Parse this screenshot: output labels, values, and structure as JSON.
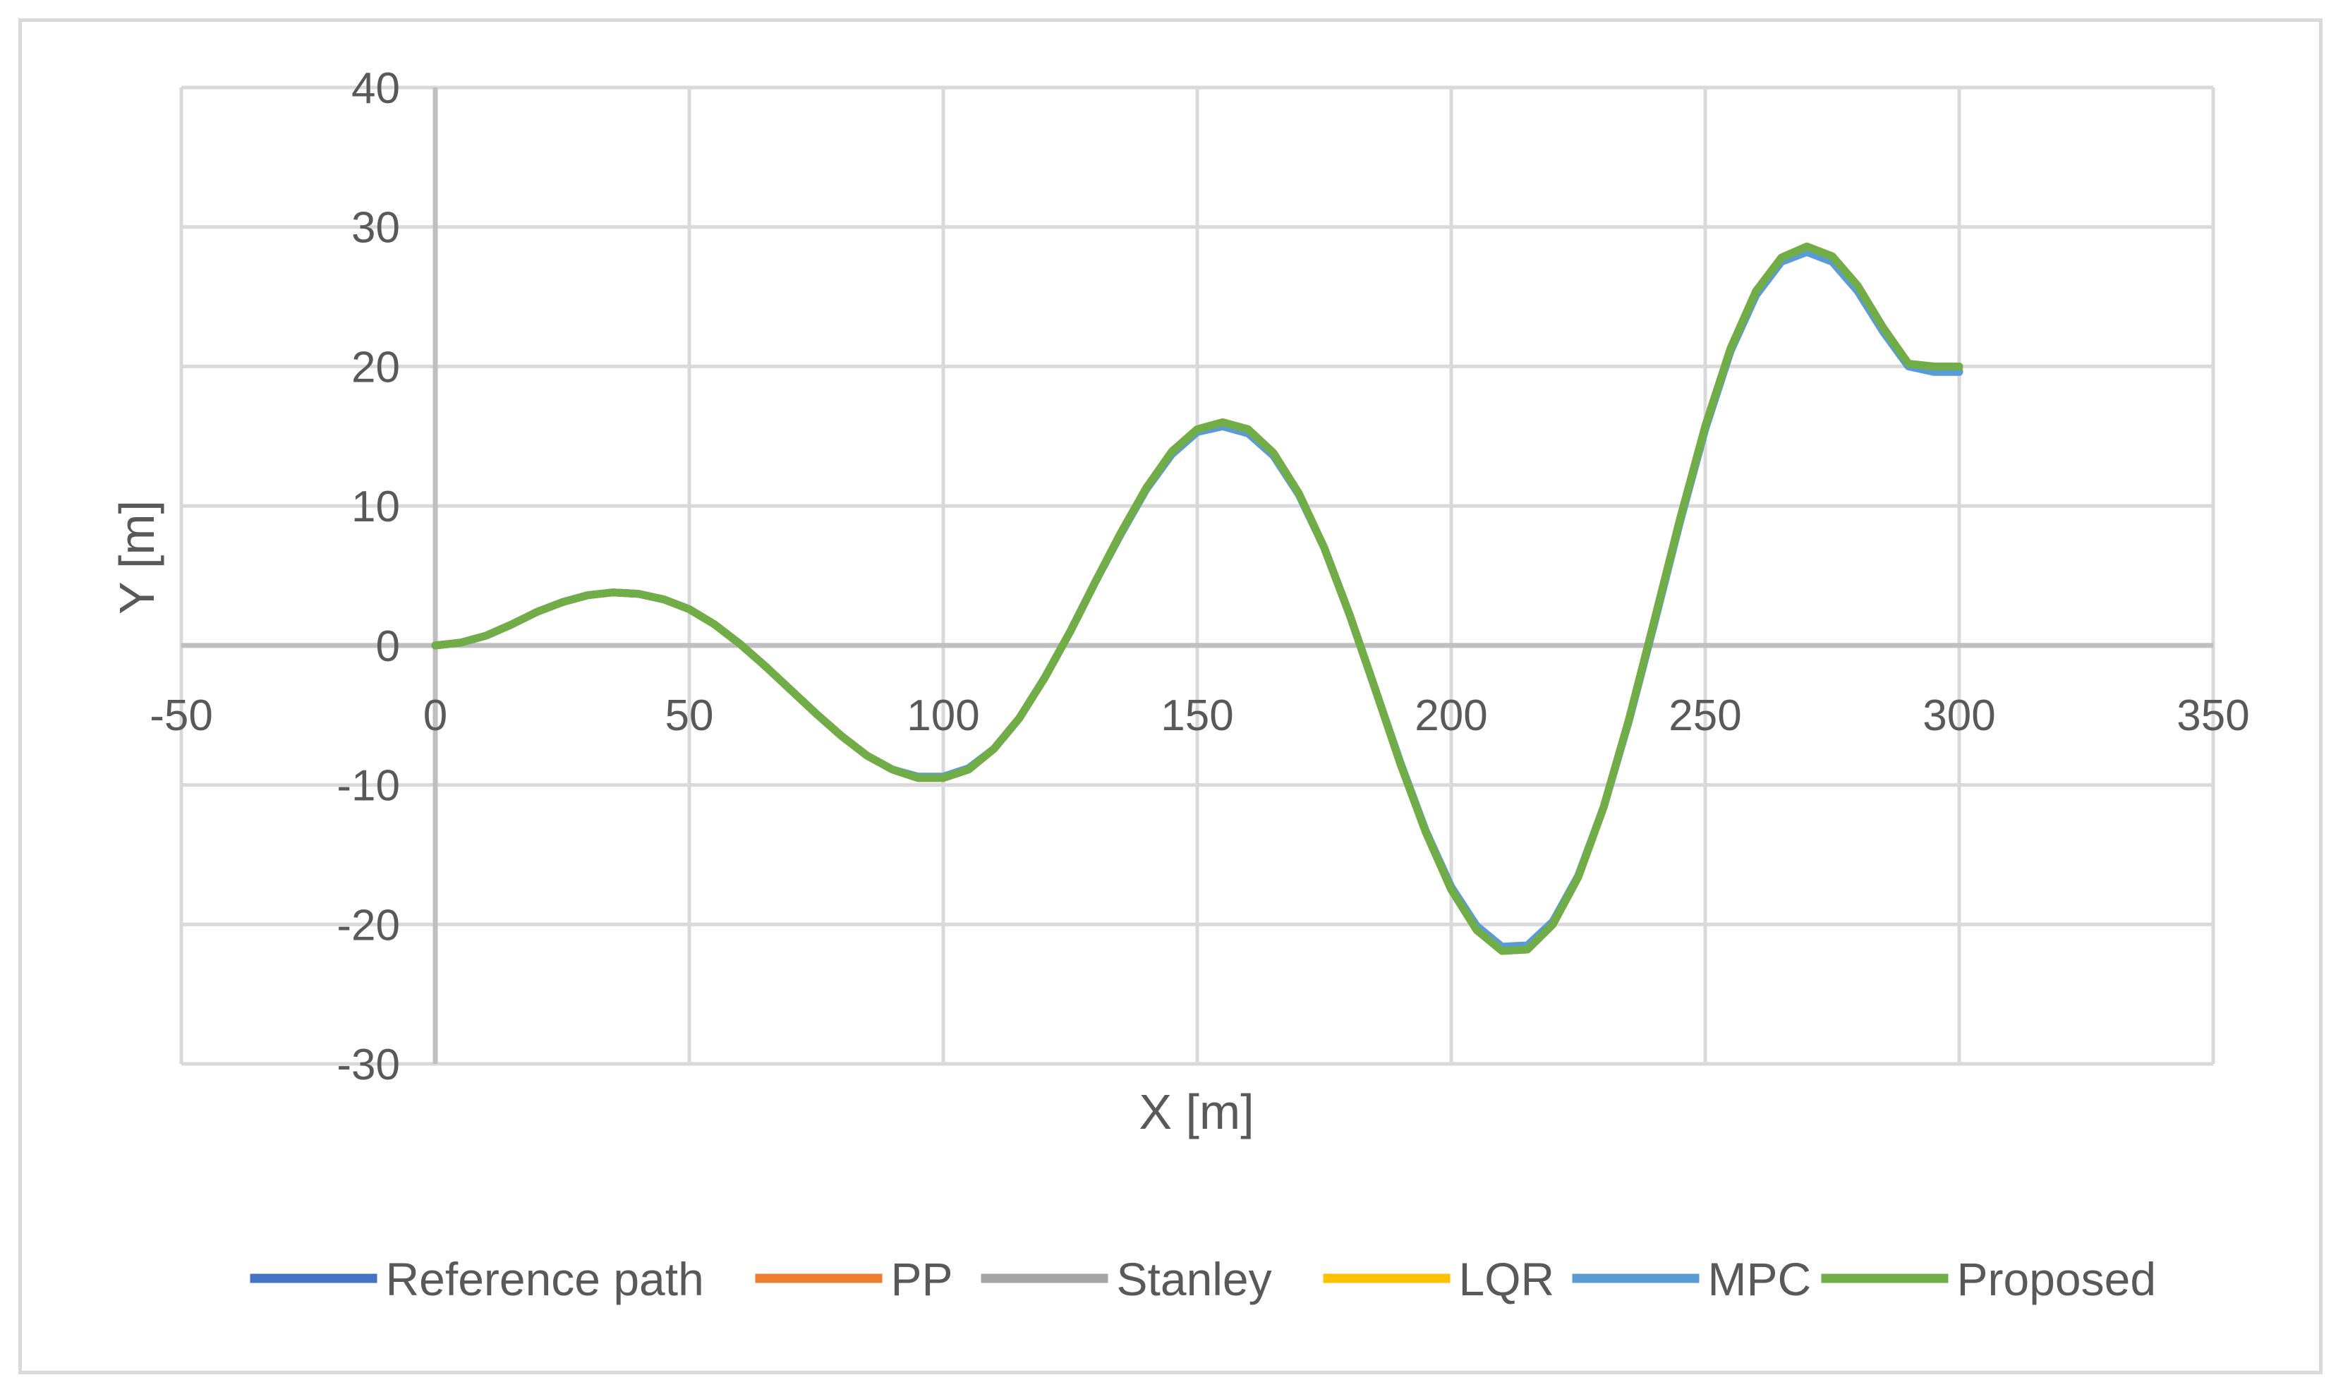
{
  "chart_data": {
    "type": "line",
    "title": "",
    "xlabel": "X [m]",
    "ylabel": "Y [m]",
    "xlim": [
      -50,
      350
    ],
    "ylim": [
      -30,
      40
    ],
    "xticks": [
      -50,
      0,
      50,
      100,
      150,
      200,
      250,
      300,
      350
    ],
    "yticks": [
      -30,
      -20,
      -10,
      0,
      10,
      20,
      30,
      40
    ],
    "grid": true,
    "legend_position": "bottom",
    "x": [
      0,
      5,
      10,
      15,
      20,
      25,
      30,
      35,
      40,
      45,
      50,
      55,
      60,
      65,
      70,
      75,
      80,
      85,
      90,
      95,
      100,
      105,
      110,
      115,
      120,
      125,
      130,
      135,
      140,
      145,
      150,
      155,
      160,
      165,
      170,
      175,
      180,
      185,
      190,
      195,
      200,
      205,
      210,
      215,
      220,
      225,
      230,
      235,
      240,
      245,
      250,
      255,
      260,
      265,
      270,
      275,
      280,
      285,
      290,
      295,
      300
    ],
    "series": [
      {
        "name": "Reference path",
        "color": "#4472C4",
        "values": [
          0,
          0.2,
          0.7,
          1.5,
          2.4,
          3.1,
          3.6,
          3.8,
          3.7,
          3.3,
          2.6,
          1.5,
          0.1,
          -1.5,
          -3.2,
          -4.9,
          -6.5,
          -7.9,
          -8.9,
          -9.5,
          -9.5,
          -8.9,
          -7.4,
          -5.2,
          -2.3,
          1.0,
          4.6,
          8.1,
          11.3,
          13.9,
          15.5,
          16.0,
          15.5,
          13.8,
          10.9,
          7.0,
          2.2,
          -3.1,
          -8.5,
          -13.4,
          -17.5,
          -20.4,
          -21.9,
          -21.8,
          -20.0,
          -16.6,
          -11.6,
          -5.3,
          1.8,
          9.0,
          15.7,
          21.3,
          25.4,
          27.8,
          28.6,
          27.9,
          25.8,
          22.8,
          20.2,
          19.8,
          19.8
        ]
      },
      {
        "name": "PP",
        "color": "#ED7D31",
        "values": [
          0,
          0.2,
          0.7,
          1.5,
          2.4,
          3.1,
          3.6,
          3.8,
          3.7,
          3.3,
          2.6,
          1.5,
          0.1,
          -1.5,
          -3.2,
          -4.9,
          -6.5,
          -7.9,
          -8.9,
          -9.5,
          -9.5,
          -8.9,
          -7.4,
          -5.2,
          -2.3,
          1.0,
          4.6,
          8.1,
          11.3,
          13.9,
          15.5,
          16.0,
          15.5,
          13.8,
          10.9,
          7.0,
          2.2,
          -3.1,
          -8.5,
          -13.4,
          -17.5,
          -20.4,
          -21.9,
          -21.8,
          -20.0,
          -16.6,
          -11.6,
          -5.3,
          1.8,
          9.0,
          15.7,
          21.3,
          25.4,
          27.8,
          28.6,
          27.9,
          25.8,
          22.8,
          20.2,
          19.8,
          19.8
        ]
      },
      {
        "name": "Stanley",
        "color": "#A5A5A5",
        "values": [
          0,
          0.2,
          0.7,
          1.5,
          2.4,
          3.1,
          3.6,
          3.8,
          3.7,
          3.3,
          2.6,
          1.5,
          0.1,
          -1.5,
          -3.2,
          -4.9,
          -6.5,
          -7.9,
          -8.9,
          -9.5,
          -9.5,
          -8.9,
          -7.4,
          -5.2,
          -2.3,
          1.0,
          4.6,
          8.1,
          11.3,
          13.9,
          15.5,
          16.0,
          15.5,
          13.8,
          10.9,
          7.0,
          2.2,
          -3.1,
          -8.5,
          -13.4,
          -17.5,
          -20.4,
          -21.9,
          -21.8,
          -20.0,
          -16.6,
          -11.6,
          -5.3,
          1.8,
          9.0,
          15.7,
          21.3,
          25.4,
          27.8,
          28.6,
          27.9,
          25.8,
          22.8,
          20.2,
          19.8,
          19.8
        ]
      },
      {
        "name": "LQR",
        "color": "#FFC000",
        "values": [
          0,
          0.2,
          0.7,
          1.5,
          2.4,
          3.1,
          3.6,
          3.8,
          3.7,
          3.3,
          2.6,
          1.5,
          0.1,
          -1.5,
          -3.2,
          -4.9,
          -6.5,
          -7.9,
          -8.9,
          -9.5,
          -9.5,
          -8.9,
          -7.4,
          -5.2,
          -2.3,
          1.0,
          4.6,
          8.1,
          11.3,
          13.9,
          15.5,
          16.0,
          15.5,
          13.8,
          10.9,
          7.0,
          2.2,
          -3.1,
          -8.5,
          -13.4,
          -17.5,
          -20.4,
          -21.9,
          -21.8,
          -20.0,
          -16.6,
          -11.6,
          -5.3,
          1.8,
          9.0,
          15.7,
          21.3,
          25.4,
          27.8,
          28.6,
          27.9,
          25.8,
          22.8,
          20.2,
          19.8,
          19.8
        ]
      },
      {
        "name": "MPC",
        "color": "#5B9BD5",
        "values": [
          0,
          0.2,
          0.7,
          1.5,
          2.4,
          3.1,
          3.6,
          3.8,
          3.7,
          3.3,
          2.6,
          1.5,
          0.1,
          -1.5,
          -3.2,
          -4.9,
          -6.5,
          -7.9,
          -8.9,
          -9.4,
          -9.4,
          -8.8,
          -7.4,
          -5.2,
          -2.3,
          1.0,
          4.6,
          8.0,
          11.2,
          13.7,
          15.3,
          15.7,
          15.2,
          13.6,
          10.8,
          7.0,
          2.2,
          -3.1,
          -8.4,
          -13.3,
          -17.3,
          -20.1,
          -21.6,
          -21.5,
          -19.8,
          -16.5,
          -11.6,
          -5.4,
          1.6,
          8.8,
          15.5,
          21.1,
          25.1,
          27.5,
          28.2,
          27.5,
          25.4,
          22.5,
          20.0,
          19.6,
          19.6
        ]
      },
      {
        "name": "Proposed",
        "color": "#70AD47",
        "values": [
          0,
          0.2,
          0.7,
          1.5,
          2.4,
          3.1,
          3.6,
          3.8,
          3.7,
          3.3,
          2.6,
          1.5,
          0.1,
          -1.5,
          -3.2,
          -4.9,
          -6.5,
          -7.9,
          -8.9,
          -9.5,
          -9.5,
          -8.9,
          -7.4,
          -5.2,
          -2.3,
          1.0,
          4.6,
          8.1,
          11.3,
          13.9,
          15.5,
          16.0,
          15.5,
          13.8,
          10.9,
          7.0,
          2.2,
          -3.1,
          -8.5,
          -13.4,
          -17.5,
          -20.4,
          -21.9,
          -21.8,
          -20.0,
          -16.6,
          -11.6,
          -5.3,
          1.8,
          9.0,
          15.7,
          21.3,
          25.4,
          27.8,
          28.6,
          27.9,
          25.8,
          22.8,
          20.2,
          20.0,
          20.0
        ]
      }
    ]
  }
}
